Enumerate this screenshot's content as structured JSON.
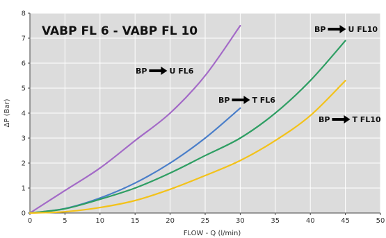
{
  "chart_data": {
    "type": "line",
    "title": "VABP FL 6 - VABP FL 10",
    "xlabel": "FLOW - Q (l/min)",
    "ylabel": "ΔP (Bar)",
    "xlim": [
      0,
      50
    ],
    "ylim": [
      0,
      8
    ],
    "xticks": [
      "0",
      "5",
      "10",
      "15",
      "20",
      "25",
      "30",
      "35",
      "40",
      "45",
      "50"
    ],
    "yticks": [
      "0",
      "1",
      "2",
      "3",
      "4",
      "5",
      "6",
      "7",
      "8"
    ],
    "grid": true,
    "background": "#dcdcdc",
    "series": [
      {
        "name": "BP → U FL6",
        "color": "#a36ac7",
        "x": [
          0,
          5,
          10,
          15,
          20,
          25,
          30
        ],
        "y": [
          0,
          0.9,
          1.8,
          2.9,
          4.0,
          5.5,
          7.5
        ]
      },
      {
        "name": "BP → T FL6",
        "color": "#4a7ec9",
        "x": [
          0,
          5,
          10,
          15,
          20,
          25,
          30
        ],
        "y": [
          0,
          0.18,
          0.6,
          1.2,
          2.0,
          3.0,
          4.2
        ]
      },
      {
        "name": "BP → U FL10",
        "color": "#2e9e63",
        "x": [
          0,
          5,
          10,
          15,
          20,
          25,
          30,
          35,
          40,
          45
        ],
        "y": [
          0,
          0.17,
          0.55,
          1.0,
          1.6,
          2.3,
          3.0,
          4.0,
          5.3,
          6.9
        ]
      },
      {
        "name": "BP → T FL10",
        "color": "#f3c21a",
        "x": [
          0,
          5,
          10,
          15,
          20,
          25,
          30,
          35,
          40,
          45
        ],
        "y": [
          0,
          0.05,
          0.22,
          0.5,
          0.95,
          1.5,
          2.1,
          2.9,
          3.9,
          5.3
        ]
      }
    ],
    "annotations": [
      {
        "from": "BP",
        "to": "U FL6"
      },
      {
        "from": "BP",
        "to": "T FL6"
      },
      {
        "from": "BP",
        "to": "U FL10"
      },
      {
        "from": "BP",
        "to": "T FL10"
      }
    ]
  }
}
